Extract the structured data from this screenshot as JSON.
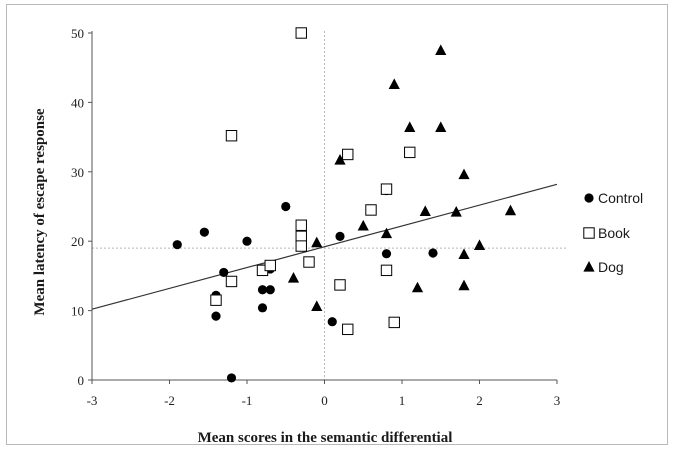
{
  "chart_data": {
    "type": "scatter",
    "title": "",
    "xlabel": "Mean scores in the semantic differential",
    "ylabel": "Mean latency of escape response",
    "xlim": [
      -3,
      3
    ],
    "ylim": [
      0,
      50
    ],
    "xticks": [
      "-3",
      "-2",
      "-1",
      "0",
      "1",
      "2",
      "3"
    ],
    "yticks": [
      "0",
      "10",
      "20",
      "30",
      "40",
      "50"
    ],
    "grid": false,
    "legend_position": "right",
    "reference_lines": {
      "x": 0,
      "y": 19
    },
    "trendline": {
      "x": [
        -3,
        3
      ],
      "y": [
        10.2,
        28.2
      ]
    },
    "series": [
      {
        "name": "Control",
        "marker": "circle",
        "x": [
          -1.9,
          -1.55,
          -1.4,
          -1.4,
          -1.3,
          -1.2,
          -1.0,
          -0.8,
          -0.8,
          -0.8,
          -0.75,
          -0.7,
          -0.7,
          -0.5,
          -0.3,
          0.1,
          0.2,
          0.8,
          0.8,
          1.4
        ],
        "y": [
          19.5,
          21.3,
          12.2,
          9.2,
          15.5,
          0.3,
          20.0,
          16.0,
          13.0,
          10.4,
          16.0,
          16.0,
          13.0,
          25.0,
          19.5,
          8.4,
          20.7,
          18.2,
          27.3,
          18.3
        ]
      },
      {
        "name": "Book",
        "marker": "square",
        "x": [
          -1.4,
          -1.2,
          -1.2,
          -0.8,
          -0.7,
          -0.3,
          -0.3,
          -0.3,
          -0.3,
          -0.2,
          0.2,
          0.3,
          0.3,
          0.6,
          0.8,
          0.8,
          0.9,
          1.1
        ],
        "y": [
          11.5,
          35.2,
          14.2,
          15.8,
          16.5,
          50.0,
          22.3,
          20.7,
          19.3,
          17.0,
          13.7,
          7.3,
          32.5,
          24.5,
          27.5,
          15.8,
          8.3,
          32.8
        ]
      },
      {
        "name": "Dog",
        "marker": "triangle",
        "x": [
          -0.4,
          -0.1,
          -0.1,
          0.2,
          0.5,
          0.8,
          0.9,
          1.1,
          1.2,
          1.3,
          1.5,
          1.5,
          1.7,
          1.8,
          1.8,
          1.8,
          2.0,
          2.4
        ],
        "y": [
          14.7,
          19.8,
          10.6,
          31.7,
          22.2,
          21.1,
          42.6,
          36.4,
          13.3,
          24.3,
          47.5,
          36.4,
          24.2,
          29.6,
          18.1,
          13.6,
          19.4,
          24.4
        ]
      }
    ]
  }
}
